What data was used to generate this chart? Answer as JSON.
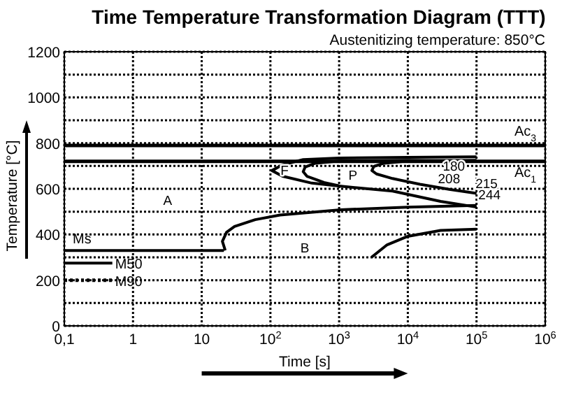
{
  "chart_data": {
    "type": "line",
    "title": "Time Temperature Transformation Diagram (TTT)",
    "subtitle": "Austenitizing temperature: 850°C",
    "xlabel": "Time [s]",
    "ylabel": "Temperature [°C]",
    "log": "x",
    "grid": true,
    "marker": "none",
    "xlim": [
      0.1,
      1000000
    ],
    "xticks": [
      {
        "value": 0.1,
        "label": "0,1"
      },
      1,
      10,
      {
        "value": 100,
        "label": "10$^{2}$"
      },
      {
        "value": 1000,
        "label": "10$^{3}$"
      },
      {
        "value": 10000,
        "label": "10$^{4}$"
      },
      {
        "value": 100000,
        "label": "10$^{5}$"
      },
      {
        "value": 1000000,
        "label": "10$^{6}$"
      }
    ],
    "ylim": [
      0,
      1200
    ],
    "yticks": [
      0,
      {
        "value": 100,
        "label": null
      },
      200,
      {
        "value": 300,
        "label": null
      },
      400,
      {
        "value": 500,
        "label": null
      },
      600,
      {
        "value": 700,
        "label": null
      },
      800,
      {
        "value": 900,
        "label": null
      },
      1000,
      {
        "value": 1100,
        "label": null
      },
      1200
    ],
    "ref_lines": [
      {
        "axis": "y",
        "value": 790,
        "label": "Ac$_{3}$",
        "color": "#000000"
      },
      {
        "axis": "y",
        "value": 720,
        "label": "Ac$_{1}$",
        "color": "#000000"
      }
    ],
    "series": [
      {
        "name": "Ms",
        "color": "#000000",
        "x": [
          0.1,
          21
        ],
        "values": [
          330,
          330
        ]
      },
      {
        "name": "M50",
        "color": "#000000",
        "x": [
          0.1,
          0.5
        ],
        "values": [
          275,
          275
        ]
      },
      {
        "name": "M90",
        "color": "#000000",
        "line_style": "dotted",
        "x": [
          0.1,
          0.5
        ],
        "values": [
          200,
          200
        ]
      },
      {
        "color": "#000000",
        "x": [
          22,
          20,
          23,
          30,
          60,
          138,
          1050,
          10000,
          100000
        ],
        "values": [
          330,
          370,
          410,
          435,
          465,
          485,
          508,
          520,
          527
        ]
      },
      {
        "color": "#000000",
        "x": [
          100000,
          10000,
          1000,
          300,
          150,
          105,
          150,
          400,
          1000,
          6000,
          30000,
          100000
        ],
        "values": [
          740,
          738,
          735,
          728,
          705,
          680,
          655,
          625,
          612,
          590,
          545,
          520
        ]
      },
      {
        "color": "#000000",
        "x": [
          100000,
          10000,
          1000,
          450,
          320,
          300,
          340,
          600,
          1000
        ],
        "values": [
          722,
          725,
          722,
          712,
          695,
          675,
          655,
          628,
          613
        ]
      },
      {
        "color": "#000000",
        "x": [
          100000,
          10000,
          4500,
          3200,
          3000,
          3500,
          6000,
          15000,
          40000,
          100000
        ],
        "values": [
          725,
          722,
          712,
          698,
          680,
          665,
          645,
          620,
          598,
          580
        ]
      },
      {
        "color": "#000000",
        "x": [
          2950,
          5000,
          10000,
          30000,
          100000
        ],
        "values": [
          300,
          355,
          392,
          418,
          423
        ]
      }
    ],
    "annotations": [
      "A",
      "B",
      "F",
      "P",
      "180",
      "208",
      "215",
      "244"
    ]
  }
}
